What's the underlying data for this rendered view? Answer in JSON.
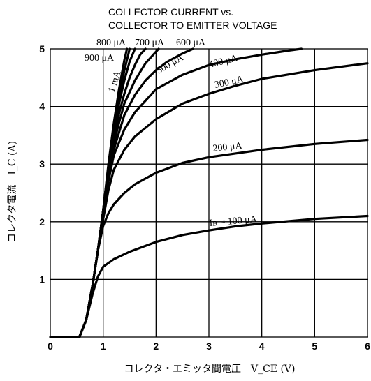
{
  "chart_data": {
    "type": "line",
    "title_lines": [
      "COLLECTOR CURRENT vs.",
      "COLLECTOR TO EMITTER VOLTAGE"
    ],
    "xlabel": "コレクタ・エミッタ間電圧　V_CE (V)",
    "ylabel": "コレクタ電流　I_C (A)",
    "xlim": [
      0,
      6
    ],
    "ylim": [
      0,
      5
    ],
    "x_ticks": [
      "0",
      "1",
      "2",
      "3",
      "4",
      "5",
      "6"
    ],
    "y_ticks": [
      "1",
      "2",
      "3",
      "4",
      "5"
    ],
    "grid": true,
    "series": [
      {
        "name": "I_B = 100 μA",
        "label": "Iʙ = 100 μA",
        "x": [
          0,
          0.55,
          0.68,
          0.8,
          0.9,
          1.0,
          1.2,
          1.5,
          2.0,
          2.5,
          3.0,
          3.5,
          4.0,
          5.0,
          6.0
        ],
        "y": [
          0,
          0,
          0.3,
          0.75,
          1.05,
          1.22,
          1.35,
          1.48,
          1.65,
          1.77,
          1.85,
          1.92,
          1.97,
          2.05,
          2.1
        ]
      },
      {
        "name": "200 μA",
        "label": "200 μA",
        "x": [
          0.55,
          0.68,
          0.8,
          0.9,
          1.0,
          1.1,
          1.2,
          1.4,
          1.6,
          2.0,
          2.5,
          3.0,
          4.0,
          5.0,
          6.0
        ],
        "y": [
          0,
          0.3,
          0.9,
          1.5,
          1.93,
          2.15,
          2.3,
          2.5,
          2.65,
          2.85,
          3.02,
          3.12,
          3.25,
          3.35,
          3.42
        ]
      },
      {
        "name": "300 μA",
        "label": "300 μA",
        "x": [
          0.55,
          0.68,
          0.8,
          0.9,
          1.0,
          1.1,
          1.2,
          1.4,
          1.6,
          2.0,
          2.5,
          3.0,
          3.5,
          4.0,
          5.0,
          6.0
        ],
        "y": [
          0,
          0.3,
          0.9,
          1.5,
          2.05,
          2.55,
          2.9,
          3.25,
          3.48,
          3.78,
          4.05,
          4.22,
          4.36,
          4.48,
          4.63,
          4.75
        ]
      },
      {
        "name": "400 μA",
        "label": "400 μA",
        "x": [
          0.55,
          0.68,
          0.8,
          0.9,
          1.0,
          1.1,
          1.2,
          1.4,
          1.6,
          2.0,
          2.5,
          3.0,
          3.5,
          4.0,
          4.5,
          4.75
        ],
        "y": [
          0,
          0.3,
          0.9,
          1.5,
          2.1,
          2.7,
          3.15,
          3.6,
          3.9,
          4.3,
          4.55,
          4.72,
          4.82,
          4.9,
          4.97,
          5.0
        ]
      },
      {
        "name": "500 μA",
        "label": "500 μA",
        "x": [
          0.55,
          0.68,
          0.8,
          0.9,
          1.0,
          1.1,
          1.2,
          1.4,
          1.6,
          1.8,
          2.0,
          2.2,
          2.5,
          2.7
        ],
        "y": [
          0,
          0.3,
          0.9,
          1.5,
          2.15,
          2.75,
          3.25,
          3.85,
          4.2,
          4.45,
          4.63,
          4.77,
          4.92,
          5.0
        ]
      },
      {
        "name": "600 μA",
        "label": "600 μA",
        "x": [
          0.55,
          0.68,
          0.8,
          0.9,
          1.0,
          1.1,
          1.2,
          1.3,
          1.4,
          1.6,
          1.8,
          2.0,
          2.05
        ],
        "y": [
          0,
          0.3,
          0.9,
          1.5,
          2.2,
          2.85,
          3.35,
          3.72,
          4.05,
          4.45,
          4.75,
          4.95,
          5.0
        ]
      },
      {
        "name": "700 μA",
        "label": "700 μA",
        "x": [
          0.55,
          0.68,
          0.8,
          0.9,
          1.0,
          1.1,
          1.2,
          1.3,
          1.4,
          1.5,
          1.6,
          1.7,
          1.8
        ],
        "y": [
          0,
          0.3,
          0.9,
          1.5,
          2.2,
          2.9,
          3.45,
          3.88,
          4.22,
          4.5,
          4.72,
          4.9,
          5.0
        ]
      },
      {
        "name": "800 μA",
        "label": "800 μA",
        "x": [
          0.55,
          0.68,
          0.8,
          0.9,
          1.0,
          1.1,
          1.2,
          1.3,
          1.4,
          1.5,
          1.6
        ],
        "y": [
          0,
          0.3,
          0.9,
          1.5,
          2.2,
          2.95,
          3.55,
          4.05,
          4.45,
          4.78,
          5.0
        ]
      },
      {
        "name": "900 μA",
        "label": "900 μA",
        "x": [
          0.55,
          0.68,
          0.8,
          0.9,
          1.0,
          1.1,
          1.2,
          1.3,
          1.4,
          1.5
        ],
        "y": [
          0,
          0.3,
          0.9,
          1.5,
          2.2,
          2.95,
          3.6,
          4.15,
          4.62,
          5.0
        ]
      },
      {
        "name": "1 mA",
        "label": "1 mA",
        "x": [
          0.55,
          0.68,
          0.8,
          0.9,
          1.0,
          1.1,
          1.2,
          1.3,
          1.4,
          1.45
        ],
        "y": [
          0,
          0.3,
          0.9,
          1.5,
          2.2,
          3.0,
          3.7,
          4.3,
          4.8,
          5.0
        ]
      }
    ]
  }
}
